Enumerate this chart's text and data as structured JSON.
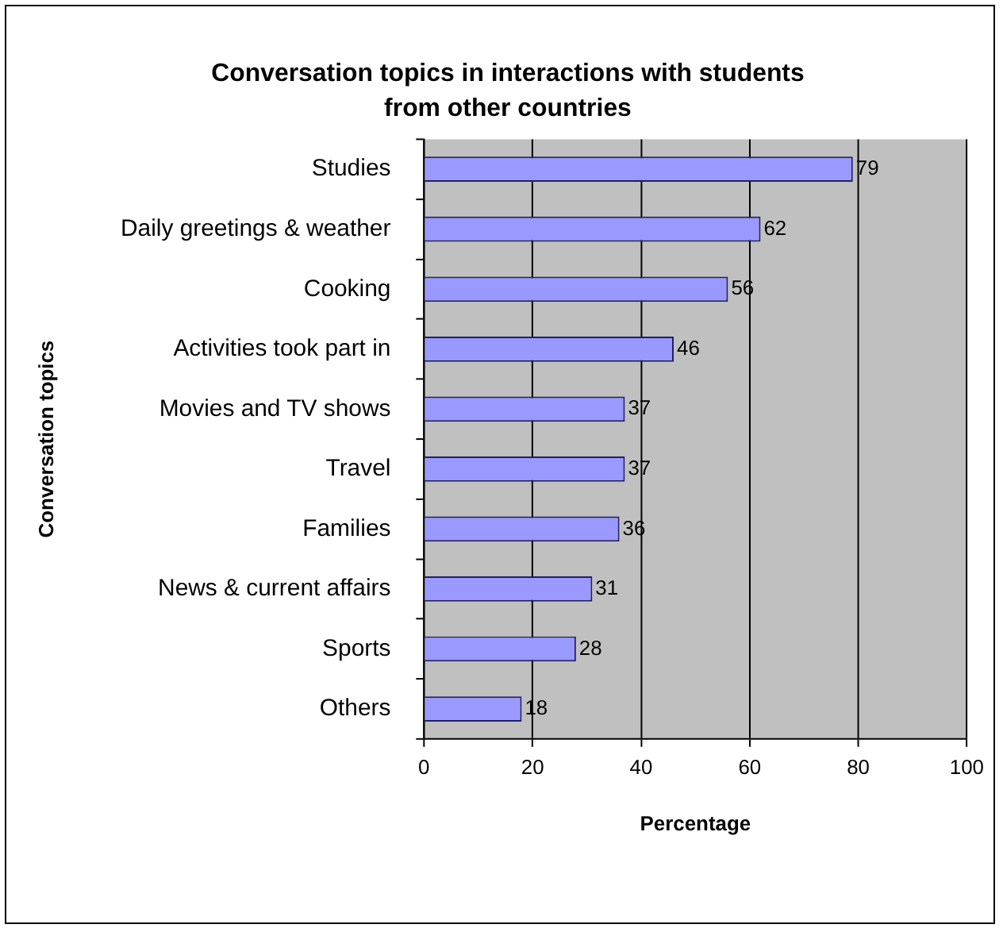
{
  "chart_data": {
    "type": "bar",
    "orientation": "horizontal",
    "title": "Conversation topics in interactions with students from other countries",
    "xlabel": "Percentage",
    "ylabel": "Conversation topics",
    "categories": [
      "Studies",
      "Daily greetings & weather",
      "Cooking",
      "Activities took part in",
      "Movies and TV shows",
      "Travel",
      "Families",
      "News & current affairs",
      "Sports",
      "Others"
    ],
    "values": [
      79,
      62,
      56,
      46,
      37,
      37,
      36,
      31,
      28,
      18
    ],
    "color": "#9999ff",
    "xlim": [
      0,
      100
    ],
    "xticks": [
      0,
      20,
      40,
      60,
      80,
      100
    ],
    "grid": "x",
    "legend": false,
    "data_labels": true
  }
}
